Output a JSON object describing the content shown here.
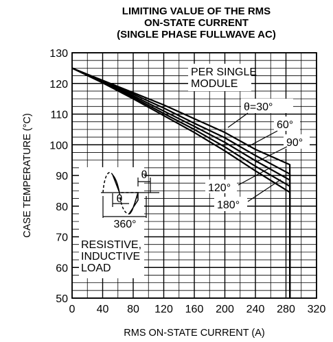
{
  "chart_data": {
    "type": "line",
    "title_lines": [
      "LIMITING VALUE OF THE RMS",
      "ON-STATE CURRENT",
      "(SINGLE PHASE FULLWAVE AC)"
    ],
    "xlabel": "RMS ON-STATE CURRENT (A)",
    "ylabel": "CASE TEMPERATURE (°C)",
    "xlim": [
      0,
      320
    ],
    "ylim": [
      50,
      130
    ],
    "x_ticks": [
      "0",
      "40",
      "80",
      "120",
      "160",
      "200",
      "240",
      "280",
      "320"
    ],
    "y_ticks": [
      "50",
      "60",
      "70",
      "80",
      "90",
      "100",
      "110",
      "120",
      "130"
    ],
    "grid": true,
    "series": [
      {
        "name": "θ=30°",
        "x": [
          0,
          40,
          80,
          120,
          160,
          200,
          240,
          285,
          285
        ],
        "y": [
          125,
          121,
          117,
          113,
          108.5,
          104,
          98.5,
          93.5,
          50
        ]
      },
      {
        "name": "60°",
        "x": [
          0,
          40,
          80,
          120,
          160,
          200,
          240,
          285,
          285
        ],
        "y": [
          125,
          120.8,
          116.5,
          112,
          107,
          102.3,
          96.5,
          90.5,
          50
        ]
      },
      {
        "name": "90°",
        "x": [
          0,
          40,
          80,
          120,
          160,
          200,
          240,
          285,
          285
        ],
        "y": [
          125,
          120.6,
          116,
          111,
          106,
          100.8,
          94.8,
          88.5,
          50
        ]
      },
      {
        "name": "120°",
        "x": [
          0,
          40,
          80,
          120,
          160,
          200,
          240,
          285,
          285
        ],
        "y": [
          125,
          120.4,
          115.5,
          110.2,
          105,
          99.3,
          93,
          86.5,
          50
        ]
      },
      {
        "name": "180°",
        "x": [
          0,
          40,
          80,
          120,
          160,
          200,
          240,
          285,
          285
        ],
        "y": [
          125,
          120.2,
          115,
          109.5,
          104,
          98,
          91.5,
          84.5,
          50
        ]
      }
    ],
    "annotations": {
      "module_lines": [
        "PER SINGLE",
        "MODULE"
      ],
      "load_lines": [
        "RESISTIVE,",
        "INDUCTIVE",
        "LOAD"
      ],
      "theta_label": "θ",
      "period_label": "360°"
    }
  }
}
